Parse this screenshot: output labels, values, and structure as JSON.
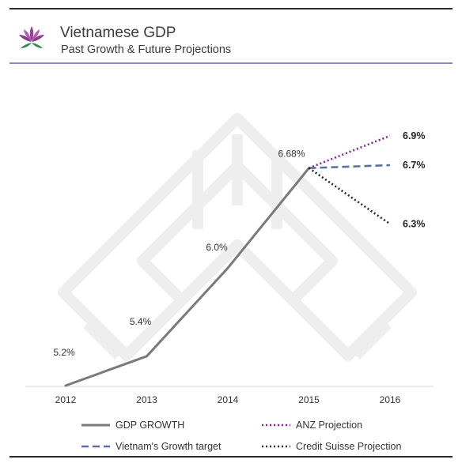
{
  "header": {
    "title": "Vietnamese GDP",
    "subtitle": "Past Growth & Future Projections",
    "logo_icon": "lotus-flower-icon",
    "watermark_icon": "geometric-lotus-watermark-icon"
  },
  "colors": {
    "gdp_growth": "#7a7a7a",
    "vietnam_target": "#5a6fa0",
    "anz_projection": "#8b1f9a",
    "credit_suisse": "#1f2a4a",
    "header_rule": "#8b86c8",
    "logo_purple": "#9b3f9c",
    "logo_green": "#2e8b57"
  },
  "chart_data": {
    "type": "line",
    "x": [
      "2012",
      "2013",
      "2014",
      "2015",
      "2016"
    ],
    "ylim": [
      5.2,
      7.2
    ],
    "grid": false,
    "legend_position": "bottom",
    "series": [
      {
        "name": "GDP GROWTH",
        "style": "solid",
        "color": "#7a7a7a",
        "points": [
          [
            "2012",
            5.2
          ],
          [
            "2013",
            5.4
          ],
          [
            "2014",
            6.0
          ],
          [
            "2015",
            6.68
          ]
        ],
        "labels": [
          "5.2%",
          "5.4%",
          "6.0%",
          "6.68%"
        ]
      },
      {
        "name": "ANZ Projection",
        "style": "dotted",
        "color": "#8b1f9a",
        "points": [
          [
            "2015",
            6.68
          ],
          [
            "2016",
            6.9
          ]
        ],
        "end_label": "6.9%"
      },
      {
        "name": "Vietnam's Growth target",
        "style": "dashed",
        "color": "#5a6fa0",
        "points": [
          [
            "2015",
            6.68
          ],
          [
            "2016",
            6.7
          ]
        ],
        "end_label": "6.7%"
      },
      {
        "name": "Credit Suisse  Projection",
        "style": "dotted",
        "color": "#1f2a4a",
        "points": [
          [
            "2015",
            6.68
          ],
          [
            "2016",
            6.3
          ]
        ],
        "end_label": "6.3%"
      }
    ],
    "legend": [
      "GDP GROWTH",
      "ANZ Projection",
      "Vietnam's Growth target",
      "Credit Suisse  Projection"
    ]
  }
}
